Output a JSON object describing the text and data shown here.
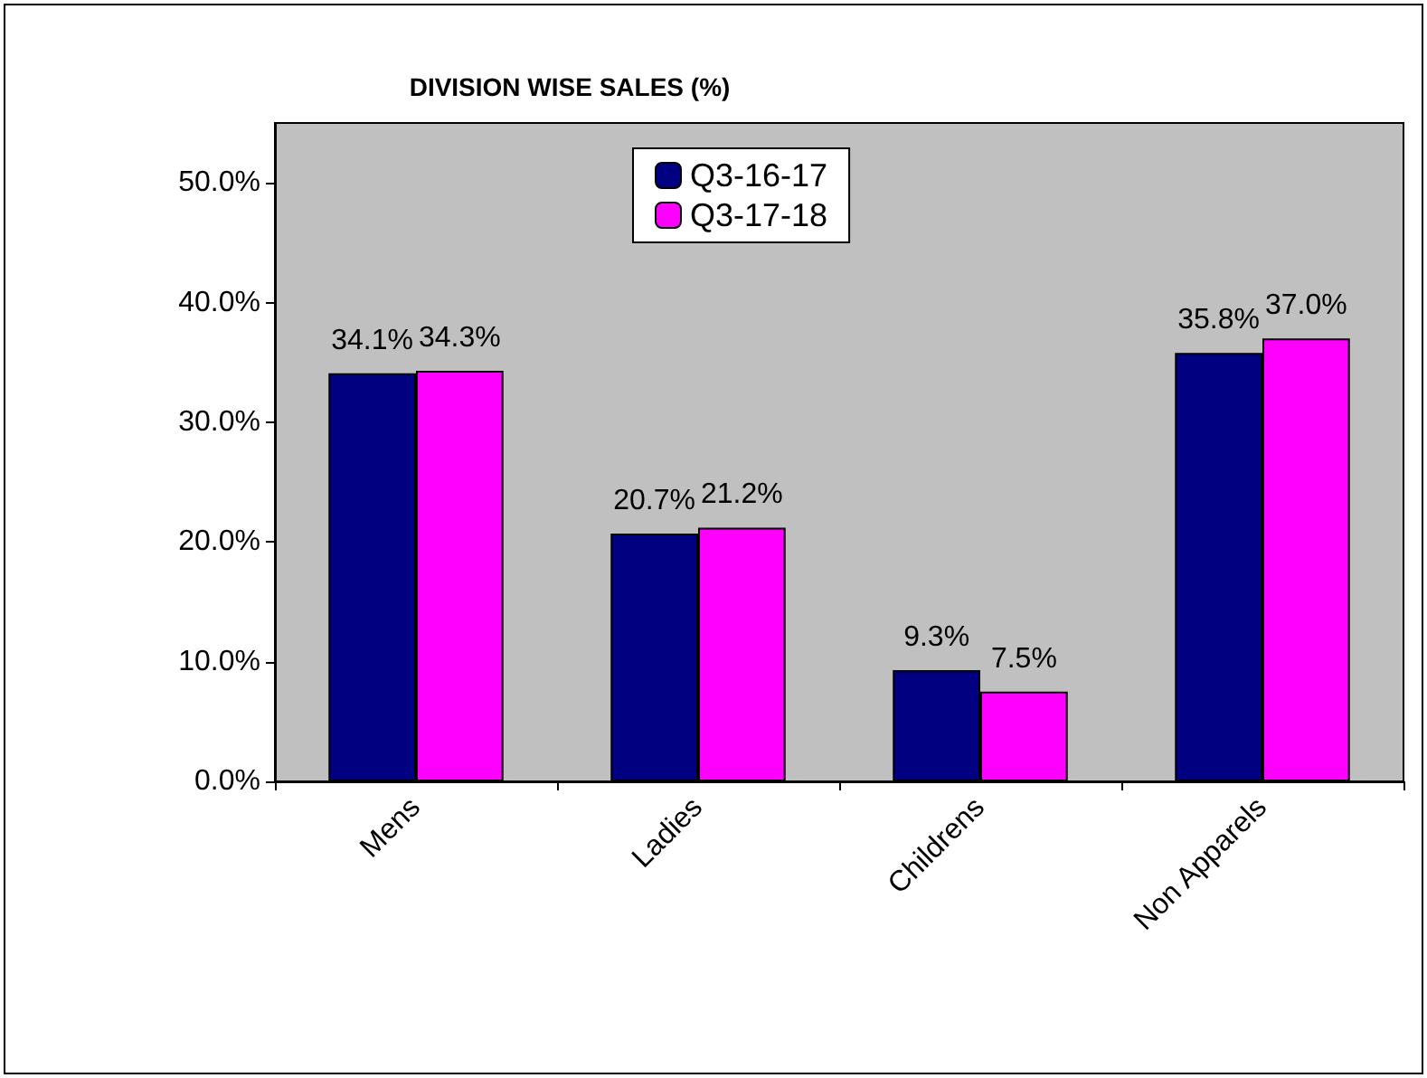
{
  "chart_data": {
    "type": "bar",
    "title": "DIVISION WISE SALES (%)",
    "categories": [
      "Mens",
      "Ladies",
      "Childrens",
      "Non Apparels"
    ],
    "series": [
      {
        "name": "Q3-16-17",
        "color": "#000080",
        "values": [
          34.1,
          20.7,
          9.3,
          35.8
        ],
        "value_labels": [
          "34.1%",
          "20.7%",
          "9.3%",
          "35.8%"
        ]
      },
      {
        "name": "Q3-17-18",
        "color": "#ff00ff",
        "values": [
          34.3,
          21.2,
          7.5,
          37.0
        ],
        "value_labels": [
          "34.3%",
          "21.2%",
          "7.5%",
          "37.0%"
        ]
      }
    ],
    "ylim": [
      0,
      55
    ],
    "yticks": [
      {
        "value": 0,
        "label": "0.0%"
      },
      {
        "value": 10,
        "label": "10.0%"
      },
      {
        "value": 20,
        "label": "20.0%"
      },
      {
        "value": 30,
        "label": "30.0%"
      },
      {
        "value": 40,
        "label": "40.0%"
      },
      {
        "value": 50,
        "label": "50.0%"
      }
    ],
    "grid": false,
    "legend": "top"
  }
}
